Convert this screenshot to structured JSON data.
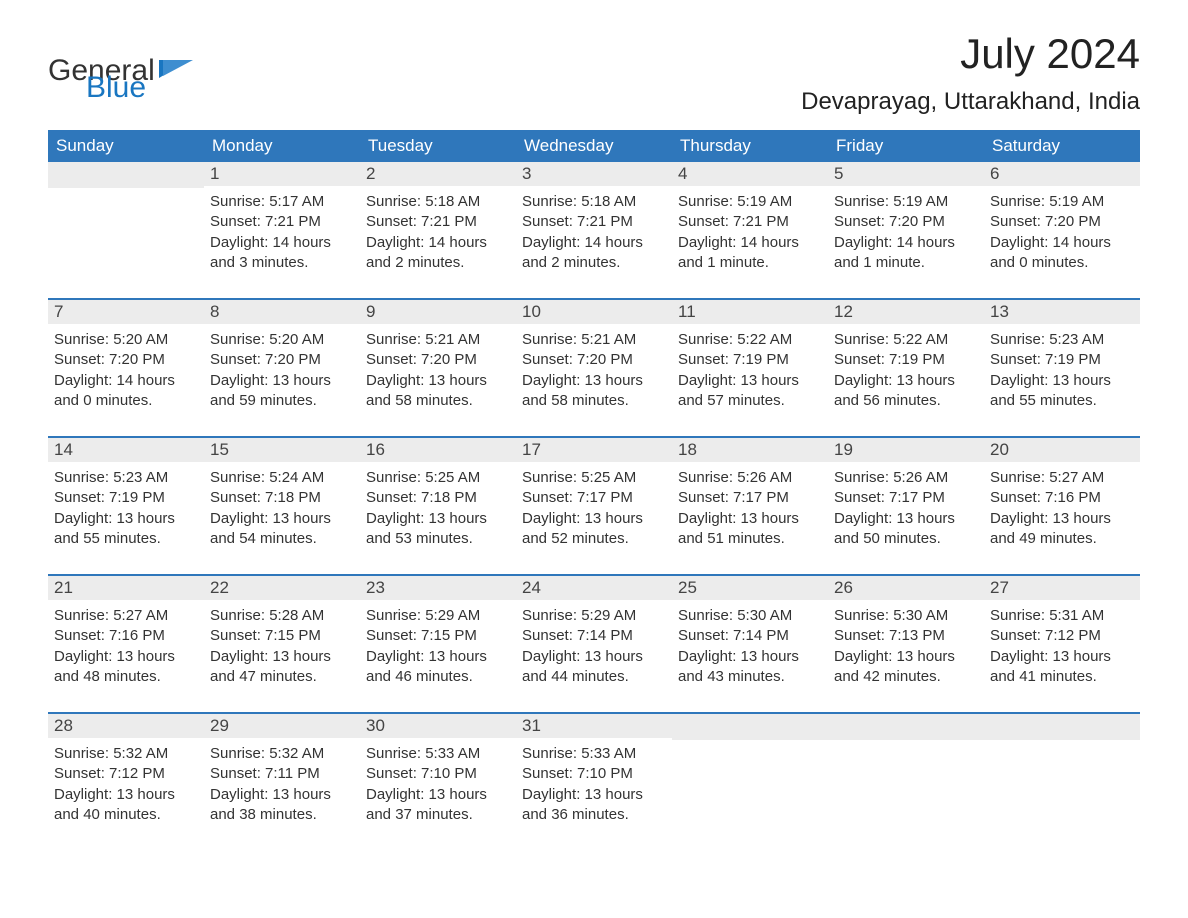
{
  "brand": {
    "general": "General",
    "blue": "Blue"
  },
  "title": "July 2024",
  "location": "Devaprayag, Uttarakhand, India",
  "colors": {
    "header_bg": "#2f77bb",
    "header_text": "#ffffff",
    "row_separator": "#2f77bb",
    "daynum_bg": "#ececec",
    "body_text": "#333333",
    "brand_blue": "#1976c1",
    "background": "#ffffff"
  },
  "typography": {
    "title_fontsize": 42,
    "location_fontsize": 24,
    "dayhead_fontsize": 17,
    "cell_fontsize": 15,
    "font_family": "Arial"
  },
  "layout": {
    "columns": 7,
    "rows": 5,
    "first_day_column_index": 1
  },
  "day_headers": [
    "Sunday",
    "Monday",
    "Tuesday",
    "Wednesday",
    "Thursday",
    "Friday",
    "Saturday"
  ],
  "days": [
    {
      "n": 1,
      "sunrise": "5:17 AM",
      "sunset": "7:21 PM",
      "daylight": "14 hours and 3 minutes."
    },
    {
      "n": 2,
      "sunrise": "5:18 AM",
      "sunset": "7:21 PM",
      "daylight": "14 hours and 2 minutes."
    },
    {
      "n": 3,
      "sunrise": "5:18 AM",
      "sunset": "7:21 PM",
      "daylight": "14 hours and 2 minutes."
    },
    {
      "n": 4,
      "sunrise": "5:19 AM",
      "sunset": "7:21 PM",
      "daylight": "14 hours and 1 minute."
    },
    {
      "n": 5,
      "sunrise": "5:19 AM",
      "sunset": "7:20 PM",
      "daylight": "14 hours and 1 minute."
    },
    {
      "n": 6,
      "sunrise": "5:19 AM",
      "sunset": "7:20 PM",
      "daylight": "14 hours and 0 minutes."
    },
    {
      "n": 7,
      "sunrise": "5:20 AM",
      "sunset": "7:20 PM",
      "daylight": "14 hours and 0 minutes."
    },
    {
      "n": 8,
      "sunrise": "5:20 AM",
      "sunset": "7:20 PM",
      "daylight": "13 hours and 59 minutes."
    },
    {
      "n": 9,
      "sunrise": "5:21 AM",
      "sunset": "7:20 PM",
      "daylight": "13 hours and 58 minutes."
    },
    {
      "n": 10,
      "sunrise": "5:21 AM",
      "sunset": "7:20 PM",
      "daylight": "13 hours and 58 minutes."
    },
    {
      "n": 11,
      "sunrise": "5:22 AM",
      "sunset": "7:19 PM",
      "daylight": "13 hours and 57 minutes."
    },
    {
      "n": 12,
      "sunrise": "5:22 AM",
      "sunset": "7:19 PM",
      "daylight": "13 hours and 56 minutes."
    },
    {
      "n": 13,
      "sunrise": "5:23 AM",
      "sunset": "7:19 PM",
      "daylight": "13 hours and 55 minutes."
    },
    {
      "n": 14,
      "sunrise": "5:23 AM",
      "sunset": "7:19 PM",
      "daylight": "13 hours and 55 minutes."
    },
    {
      "n": 15,
      "sunrise": "5:24 AM",
      "sunset": "7:18 PM",
      "daylight": "13 hours and 54 minutes."
    },
    {
      "n": 16,
      "sunrise": "5:25 AM",
      "sunset": "7:18 PM",
      "daylight": "13 hours and 53 minutes."
    },
    {
      "n": 17,
      "sunrise": "5:25 AM",
      "sunset": "7:17 PM",
      "daylight": "13 hours and 52 minutes."
    },
    {
      "n": 18,
      "sunrise": "5:26 AM",
      "sunset": "7:17 PM",
      "daylight": "13 hours and 51 minutes."
    },
    {
      "n": 19,
      "sunrise": "5:26 AM",
      "sunset": "7:17 PM",
      "daylight": "13 hours and 50 minutes."
    },
    {
      "n": 20,
      "sunrise": "5:27 AM",
      "sunset": "7:16 PM",
      "daylight": "13 hours and 49 minutes."
    },
    {
      "n": 21,
      "sunrise": "5:27 AM",
      "sunset": "7:16 PM",
      "daylight": "13 hours and 48 minutes."
    },
    {
      "n": 22,
      "sunrise": "5:28 AM",
      "sunset": "7:15 PM",
      "daylight": "13 hours and 47 minutes."
    },
    {
      "n": 23,
      "sunrise": "5:29 AM",
      "sunset": "7:15 PM",
      "daylight": "13 hours and 46 minutes."
    },
    {
      "n": 24,
      "sunrise": "5:29 AM",
      "sunset": "7:14 PM",
      "daylight": "13 hours and 44 minutes."
    },
    {
      "n": 25,
      "sunrise": "5:30 AM",
      "sunset": "7:14 PM",
      "daylight": "13 hours and 43 minutes."
    },
    {
      "n": 26,
      "sunrise": "5:30 AM",
      "sunset": "7:13 PM",
      "daylight": "13 hours and 42 minutes."
    },
    {
      "n": 27,
      "sunrise": "5:31 AM",
      "sunset": "7:12 PM",
      "daylight": "13 hours and 41 minutes."
    },
    {
      "n": 28,
      "sunrise": "5:32 AM",
      "sunset": "7:12 PM",
      "daylight": "13 hours and 40 minutes."
    },
    {
      "n": 29,
      "sunrise": "5:32 AM",
      "sunset": "7:11 PM",
      "daylight": "13 hours and 38 minutes."
    },
    {
      "n": 30,
      "sunrise": "5:33 AM",
      "sunset": "7:10 PM",
      "daylight": "13 hours and 37 minutes."
    },
    {
      "n": 31,
      "sunrise": "5:33 AM",
      "sunset": "7:10 PM",
      "daylight": "13 hours and 36 minutes."
    }
  ],
  "labels": {
    "sunrise": "Sunrise:",
    "sunset": "Sunset:",
    "daylight": "Daylight:"
  }
}
